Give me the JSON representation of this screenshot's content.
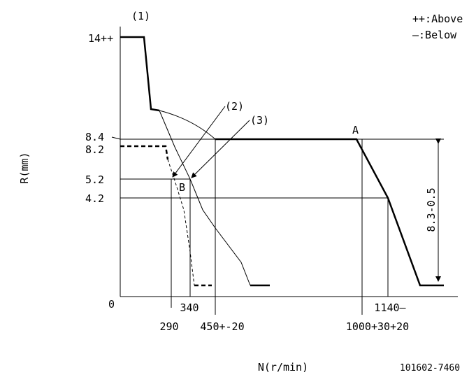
{
  "legend": {
    "above": "++:Above",
    "below": "—:Below"
  },
  "y_axis": {
    "label": "R(mm)",
    "labels": [
      "14++",
      "8.4",
      "8.2",
      "5.2",
      "4.2",
      "0"
    ]
  },
  "x_axis": {
    "label": "N(r/min)",
    "labels": [
      "290",
      "340",
      "450+-20",
      "1000+30+20",
      "1140—"
    ]
  },
  "callouts": [
    "(1)",
    "(2)",
    "(3)",
    "A",
    "B"
  ],
  "dimension": "8.3-0.5",
  "code": "101602-7460"
}
